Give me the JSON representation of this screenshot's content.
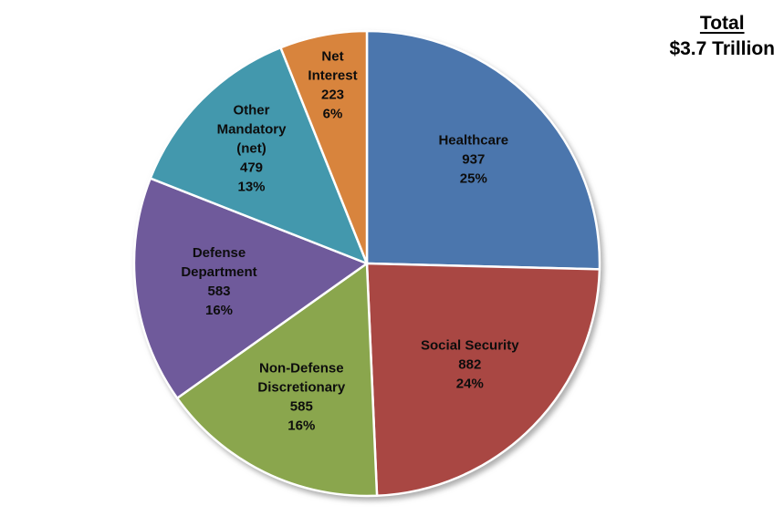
{
  "page": {
    "background": "#ffffff",
    "text_color": "#0d0d0d"
  },
  "total_box": {
    "label": "Total",
    "value": "$3.7 Trillion"
  },
  "chart_data": {
    "type": "pie",
    "title": "",
    "legend": "none",
    "data_label_format": "name, value, percent",
    "slices": [
      {
        "name": "Healthcare",
        "label_lines": [
          "Healthcare"
        ],
        "value": 937,
        "percent": "25%",
        "color": "#4B76AD"
      },
      {
        "name": "Social Security",
        "label_lines": [
          "Social Security"
        ],
        "value": 882,
        "percent": "24%",
        "color": "#A94743"
      },
      {
        "name": "Non-Defense Discretionary",
        "label_lines": [
          "Non-Defense",
          "Discretionary"
        ],
        "value": 585,
        "percent": "16%",
        "color": "#8AA64D"
      },
      {
        "name": "Defense Department",
        "label_lines": [
          "Defense",
          "Department"
        ],
        "value": 583,
        "percent": "16%",
        "color": "#6F5A9B"
      },
      {
        "name": "Other Mandatory (net)",
        "label_lines": [
          "Other",
          "Mandatory",
          "(net)"
        ],
        "value": 479,
        "percent": "13%",
        "color": "#4398AD"
      },
      {
        "name": "Net Interest",
        "label_lines": [
          "Net",
          "Interest"
        ],
        "value": 223,
        "percent": "6%",
        "color": "#D8843D"
      }
    ],
    "layout": {
      "start_at": "top",
      "direction": "clockwise",
      "center": [
        402,
        289
      ],
      "radius": 255,
      "label_radius_fraction": [
        0.64,
        0.62,
        0.64,
        0.64,
        0.7,
        0.78
      ],
      "label_line_height": 21,
      "slice_border_color": "#ffffff",
      "slice_border_width": 2.5,
      "label_color": "#0d0d0d"
    }
  }
}
